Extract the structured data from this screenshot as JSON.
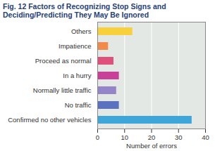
{
  "chart_data": {
    "type": "bar",
    "orientation": "horizontal",
    "title": "Fig. 12  Factors of Recognizing Stop Signs and Deciding/Predicting They May Be Ignored",
    "xlabel": "Number of errors",
    "categories": [
      "Others",
      "Impatience",
      "Proceed as normal",
      "In a hurry",
      "Normally little traffic",
      "No traffic",
      "Confirmed no other vehicles"
    ],
    "values": [
      13,
      4,
      6,
      8,
      7,
      8,
      35
    ],
    "colors": [
      "#f7d03c",
      "#f28a4a",
      "#e0507c",
      "#c8409a",
      "#9484c8",
      "#5a72c0",
      "#3fa6da"
    ],
    "xlim": [
      0,
      40
    ],
    "xticks": [
      0,
      10,
      20,
      30,
      40
    ],
    "grid": true
  }
}
